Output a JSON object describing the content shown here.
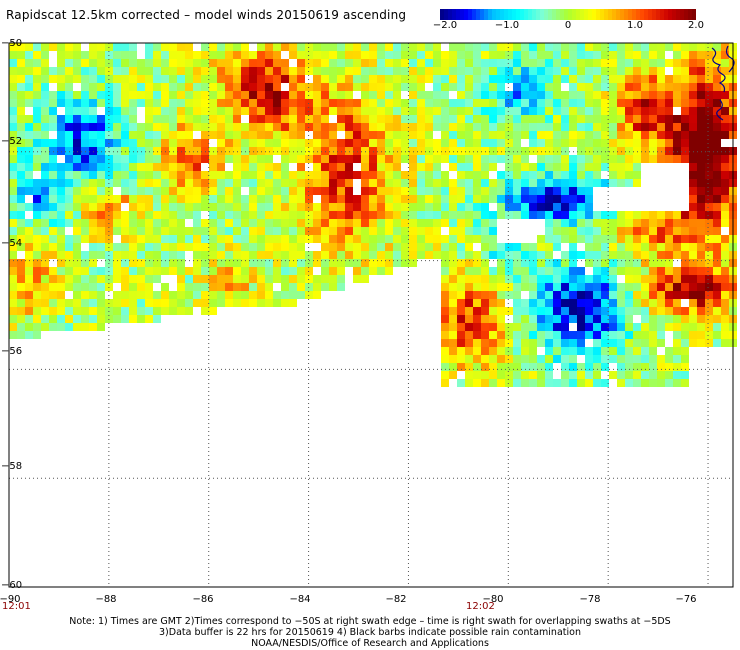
{
  "title": "Rapidscat 12.5km corrected – model winds 20150619 ascending",
  "colorbar": {
    "labels": [
      "−2.0",
      "−1.0",
      "0",
      "1.0",
      "2.0"
    ],
    "min": -2.0,
    "max": 2.0
  },
  "axes": {
    "lat_labels": [
      "−50",
      "−52",
      "−54",
      "−56",
      "−58",
      "−60"
    ],
    "lon_labels": [
      "−90",
      "−88",
      "−86",
      "−84",
      "−82",
      "−80",
      "−78",
      "−76"
    ],
    "time_labels": [
      "12:01",
      "12:02"
    ],
    "lat_range": [
      -60,
      -50
    ],
    "lon_range": [
      -90,
      -75.5
    ]
  },
  "notes": [
    "Note: 1) Times are GMT 2)Times correspond to −50S at right swath edge – time is right swath for overlapping swaths at −5DS",
    "3)Data buffer is 22 hrs for 20150619 4) Black barbs indicate possible rain contamination",
    "NOAA/NESDIS/Office of Research and Applications"
  ],
  "colors": {
    "scale": [
      "#00008b",
      "#0000ff",
      "#00bfff",
      "#00ffff",
      "#7fffd4",
      "#adff2f",
      "#ffff00",
      "#ffa500",
      "#ff4500",
      "#cc0000",
      "#800000"
    ],
    "coast": "#00008b",
    "grid": "#555555",
    "time_text": "#8b0000"
  }
}
